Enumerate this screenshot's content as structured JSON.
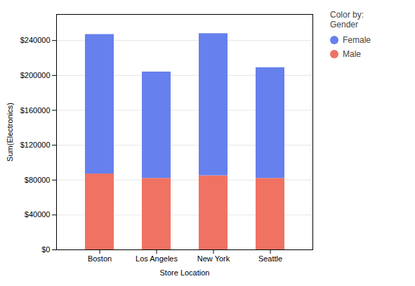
{
  "chart_data": {
    "type": "bar",
    "stacked": true,
    "categories": [
      "Boston",
      "Los Angeles",
      "New York",
      "Seattle"
    ],
    "series": [
      {
        "name": "Male",
        "color": "#F07262",
        "values": [
          87000,
          82000,
          85000,
          82000
        ]
      },
      {
        "name": "Female",
        "color": "#6680ED",
        "values": [
          160000,
          122000,
          163000,
          127000
        ]
      }
    ],
    "xlabel": "Store Location",
    "ylabel": "Sum(Electronics)",
    "legend_title": "Color by:\nGender",
    "legend": "right",
    "ylim": [
      0,
      270000
    ],
    "yticks": [
      {
        "value": 0,
        "label": "$0"
      },
      {
        "value": 40000,
        "label": "$40000"
      },
      {
        "value": 80000,
        "label": "$80000"
      },
      {
        "value": 120000,
        "label": "$120000"
      },
      {
        "value": 160000,
        "label": "$160000"
      },
      {
        "value": 200000,
        "label": "$200000"
      },
      {
        "value": 240000,
        "label": "$240000"
      }
    ],
    "grid": true
  }
}
